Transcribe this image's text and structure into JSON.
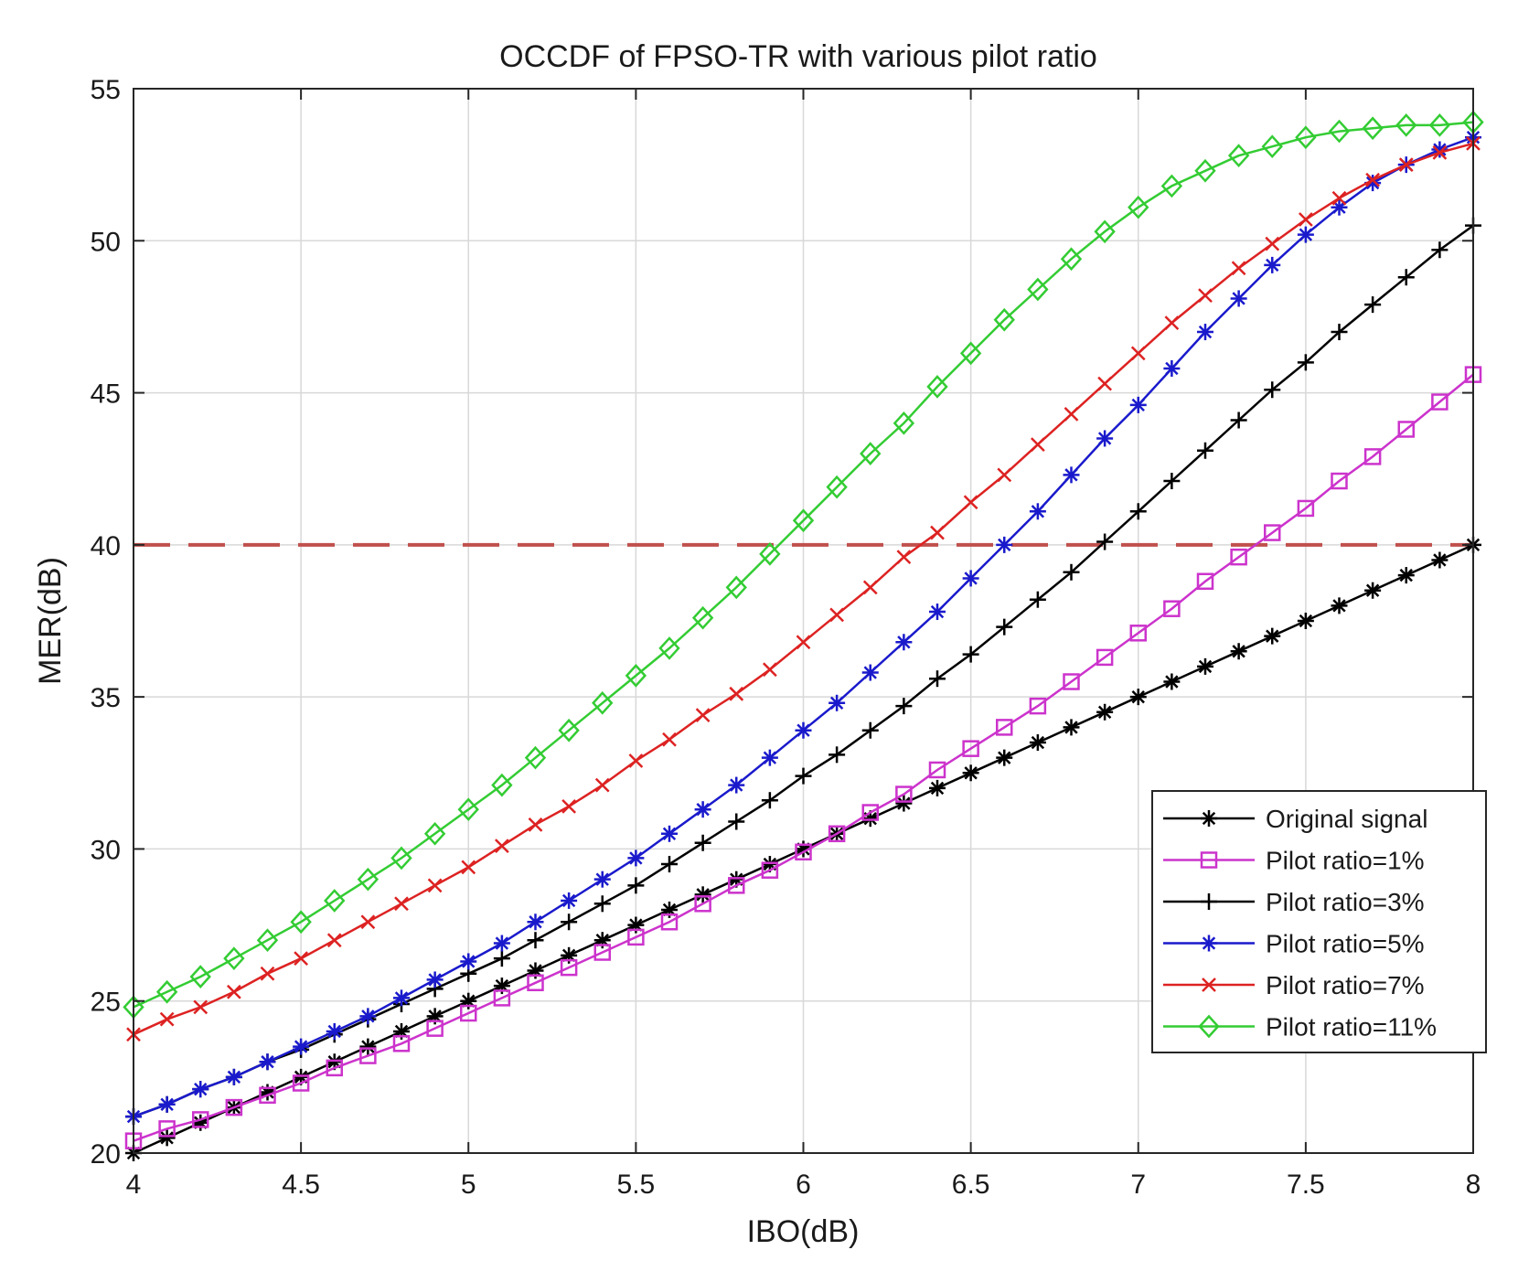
{
  "chart_data": {
    "type": "line",
    "title": "OCCDF of FPSO-TR with various pilot ratio",
    "xlabel": "IBO(dB)",
    "ylabel": "MER(dB)",
    "xlim": [
      4,
      8
    ],
    "ylim": [
      20,
      55
    ],
    "xticks": [
      "4",
      "4.5",
      "5",
      "5.5",
      "6",
      "6.5",
      "7",
      "7.5",
      "8"
    ],
    "yticks": [
      "20",
      "25",
      "30",
      "35",
      "40",
      "45",
      "50",
      "55"
    ],
    "grid": true,
    "legend_position": "lower-right",
    "reference_line": {
      "y": 40,
      "color": "#c0504d",
      "style": "dashed"
    },
    "series": [
      {
        "name": "Original signal",
        "color": "#000000",
        "marker": "asterisk",
        "x": [
          4,
          4.1,
          4.2,
          4.3,
          4.4,
          4.5,
          4.6,
          4.7,
          4.8,
          4.9,
          5,
          5.1,
          5.2,
          5.3,
          5.4,
          5.5,
          5.6,
          5.7,
          5.8,
          5.9,
          6,
          6.1,
          6.2,
          6.3,
          6.4,
          6.5,
          6.6,
          6.7,
          6.8,
          6.9,
          7,
          7.1,
          7.2,
          7.3,
          7.4,
          7.5,
          7.6,
          7.7,
          7.8,
          7.9,
          8
        ],
        "values": [
          20,
          20.5,
          21,
          21.5,
          22,
          22.5,
          23,
          23.5,
          24,
          24.5,
          25,
          25.5,
          26,
          26.5,
          27,
          27.5,
          28,
          28.5,
          29,
          29.5,
          30,
          30.5,
          31,
          31.5,
          32,
          32.5,
          33,
          33.5,
          34,
          34.5,
          35,
          35.5,
          36,
          36.5,
          37,
          37.5,
          38,
          38.5,
          39,
          39.5,
          40
        ]
      },
      {
        "name": "Pilot ratio=1%",
        "color": "#cc33cc",
        "marker": "square",
        "x": [
          4,
          4.1,
          4.2,
          4.3,
          4.4,
          4.5,
          4.6,
          4.7,
          4.8,
          4.9,
          5,
          5.1,
          5.2,
          5.3,
          5.4,
          5.5,
          5.6,
          5.7,
          5.8,
          5.9,
          6,
          6.1,
          6.2,
          6.3,
          6.4,
          6.5,
          6.6,
          6.7,
          6.8,
          6.9,
          7,
          7.1,
          7.2,
          7.3,
          7.4,
          7.5,
          7.6,
          7.7,
          7.8,
          7.9,
          8
        ],
        "values": [
          20.4,
          20.8,
          21.1,
          21.5,
          21.9,
          22.3,
          22.8,
          23.2,
          23.6,
          24.1,
          24.6,
          25.1,
          25.6,
          26.1,
          26.6,
          27.1,
          27.6,
          28.2,
          28.8,
          29.3,
          29.9,
          30.5,
          31.2,
          31.8,
          32.6,
          33.3,
          34,
          34.7,
          35.5,
          36.3,
          37.1,
          37.9,
          38.8,
          39.6,
          40.4,
          41.2,
          42.1,
          42.9,
          43.8,
          44.7,
          45.6
        ]
      },
      {
        "name": "Pilot ratio=3%",
        "color": "#000000",
        "marker": "plus",
        "x": [
          4,
          4.1,
          4.2,
          4.3,
          4.4,
          4.5,
          4.6,
          4.7,
          4.8,
          4.9,
          5,
          5.1,
          5.2,
          5.3,
          5.4,
          5.5,
          5.6,
          5.7,
          5.8,
          5.9,
          6,
          6.1,
          6.2,
          6.3,
          6.4,
          6.5,
          6.6,
          6.7,
          6.8,
          6.9,
          7,
          7.1,
          7.2,
          7.3,
          7.4,
          7.5,
          7.6,
          7.7,
          7.8,
          7.9,
          8
        ],
        "values": [
          21.2,
          21.6,
          22.1,
          22.5,
          23,
          23.4,
          23.9,
          24.4,
          24.9,
          25.4,
          25.9,
          26.4,
          27,
          27.6,
          28.2,
          28.8,
          29.5,
          30.2,
          30.9,
          31.6,
          32.4,
          33.1,
          33.9,
          34.7,
          35.6,
          36.4,
          37.3,
          38.2,
          39.1,
          40.1,
          41.1,
          42.1,
          43.1,
          44.1,
          45.1,
          46,
          47,
          47.9,
          48.8,
          49.7,
          50.5
        ]
      },
      {
        "name": " Pilot ratio=5%",
        "color": "#1a1acc",
        "marker": "asterisk",
        "x": [
          4,
          4.1,
          4.2,
          4.3,
          4.4,
          4.5,
          4.6,
          4.7,
          4.8,
          4.9,
          5,
          5.1,
          5.2,
          5.3,
          5.4,
          5.5,
          5.6,
          5.7,
          5.8,
          5.9,
          6,
          6.1,
          6.2,
          6.3,
          6.4,
          6.5,
          6.6,
          6.7,
          6.8,
          6.9,
          7,
          7.1,
          7.2,
          7.3,
          7.4,
          7.5,
          7.6,
          7.7,
          7.8,
          7.9,
          8
        ],
        "values": [
          21.2,
          21.6,
          22.1,
          22.5,
          23,
          23.5,
          24,
          24.5,
          25.1,
          25.7,
          26.3,
          26.9,
          27.6,
          28.3,
          29,
          29.7,
          30.5,
          31.3,
          32.1,
          33,
          33.9,
          34.8,
          35.8,
          36.8,
          37.8,
          38.9,
          40,
          41.1,
          42.3,
          43.5,
          44.6,
          45.8,
          47,
          48.1,
          49.2,
          50.2,
          51.1,
          51.9,
          52.5,
          53,
          53.4
        ]
      },
      {
        "name": "Pilot ratio=7%",
        "color": "#dd2222",
        "marker": "cross",
        "x": [
          4,
          4.1,
          4.2,
          4.3,
          4.4,
          4.5,
          4.6,
          4.7,
          4.8,
          4.9,
          5,
          5.1,
          5.2,
          5.3,
          5.4,
          5.5,
          5.6,
          5.7,
          5.8,
          5.9,
          6,
          6.1,
          6.2,
          6.3,
          6.4,
          6.5,
          6.6,
          6.7,
          6.8,
          6.9,
          7,
          7.1,
          7.2,
          7.3,
          7.4,
          7.5,
          7.6,
          7.7,
          7.8,
          7.9,
          8
        ],
        "values": [
          23.9,
          24.4,
          24.8,
          25.3,
          25.9,
          26.4,
          27,
          27.6,
          28.2,
          28.8,
          29.4,
          30.1,
          30.8,
          31.4,
          32.1,
          32.9,
          33.6,
          34.4,
          35.1,
          35.9,
          36.8,
          37.7,
          38.6,
          39.6,
          40.4,
          41.4,
          42.3,
          43.3,
          44.3,
          45.3,
          46.3,
          47.3,
          48.2,
          49.1,
          49.9,
          50.7,
          51.4,
          52,
          52.5,
          52.9,
          53.2
        ]
      },
      {
        "name": "Pilot ratio=11%",
        "color": "#33cc33",
        "marker": "diamond",
        "x": [
          4,
          4.1,
          4.2,
          4.3,
          4.4,
          4.5,
          4.6,
          4.7,
          4.8,
          4.9,
          5,
          5.1,
          5.2,
          5.3,
          5.4,
          5.5,
          5.6,
          5.7,
          5.8,
          5.9,
          6,
          6.1,
          6.2,
          6.3,
          6.4,
          6.5,
          6.6,
          6.7,
          6.8,
          6.9,
          7,
          7.1,
          7.2,
          7.3,
          7.4,
          7.5,
          7.6,
          7.7,
          7.8,
          7.9,
          8
        ],
        "values": [
          24.8,
          25.3,
          25.8,
          26.4,
          27,
          27.6,
          28.3,
          29,
          29.7,
          30.5,
          31.3,
          32.1,
          33,
          33.9,
          34.8,
          35.7,
          36.6,
          37.6,
          38.6,
          39.7,
          40.8,
          41.9,
          43,
          44,
          45.2,
          46.3,
          47.4,
          48.4,
          49.4,
          50.3,
          51.1,
          51.8,
          52.3,
          52.8,
          53.1,
          53.4,
          53.6,
          53.7,
          53.8,
          53.8,
          53.9
        ]
      }
    ]
  }
}
